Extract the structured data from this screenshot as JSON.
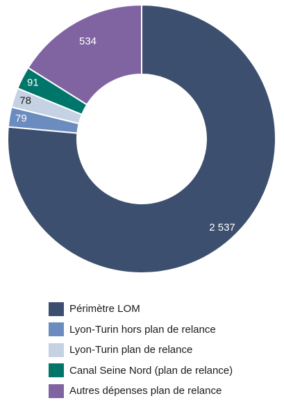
{
  "chart_data": {
    "type": "pie",
    "categories": [
      "Périmètre LOM",
      "Lyon-Turin hors plan de relance",
      "Lyon-Turin plan de relance",
      "Canal Seine Nord (plan de relance)",
      "Autres dépenses plan de relance"
    ],
    "values": [
      2537,
      79,
      78,
      91,
      534
    ],
    "data_labels": [
      "2 537",
      "79",
      "78",
      "91",
      "534"
    ],
    "colors": [
      "#3d4f6e",
      "#6b8cbf",
      "#c5d2e3",
      "#00766a",
      "#8064a2"
    ],
    "donut": true,
    "legend_position": "bottom"
  }
}
